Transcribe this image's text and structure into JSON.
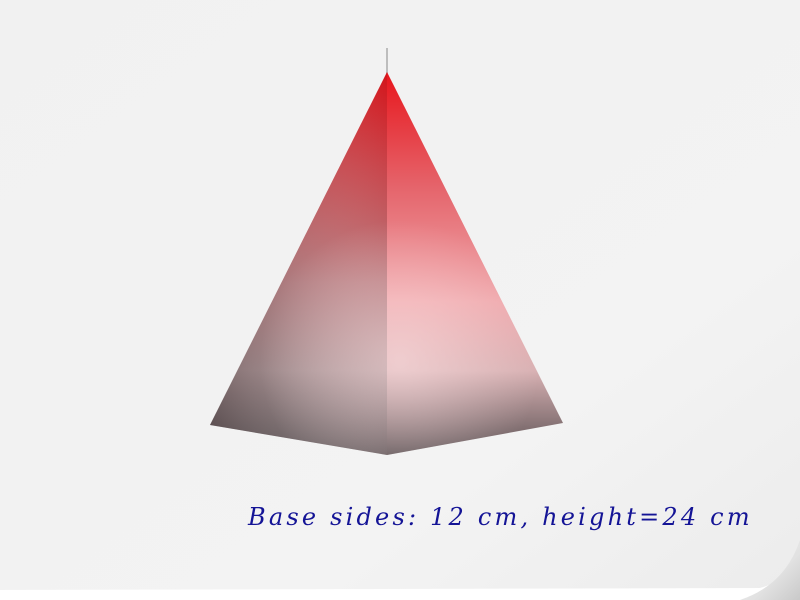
{
  "figure": {
    "caption": "Base sides: 12 cm, height=24 cm"
  },
  "colors": {
    "apex_red": "#e01818",
    "base_gray": "#6e6466",
    "caption_blue": "#141496",
    "paper": "#f2f2f2"
  }
}
